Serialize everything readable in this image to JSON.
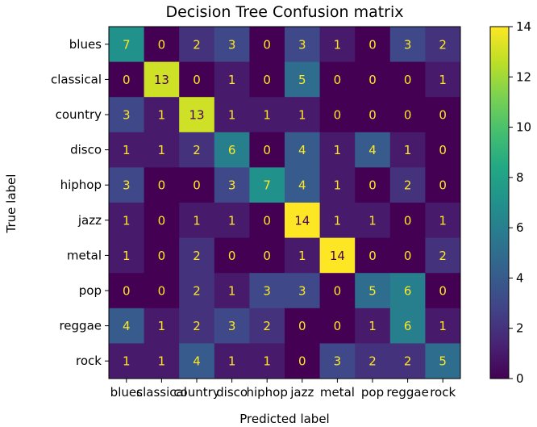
{
  "chart_data": {
    "type": "heatmap",
    "title": "Decision Tree Confusion matrix",
    "xlabel": "Predicted label",
    "ylabel": "True label",
    "x_categories": [
      "blues",
      "classical",
      "country",
      "disco",
      "hiphop",
      "jazz",
      "metal",
      "pop",
      "reggae",
      "rock"
    ],
    "y_categories": [
      "blues",
      "classical",
      "country",
      "disco",
      "hiphop",
      "jazz",
      "metal",
      "pop",
      "reggae",
      "rock"
    ],
    "values": [
      [
        7,
        0,
        2,
        3,
        0,
        3,
        1,
        0,
        3,
        2
      ],
      [
        0,
        13,
        0,
        1,
        0,
        5,
        0,
        0,
        0,
        1
      ],
      [
        3,
        1,
        13,
        1,
        1,
        1,
        0,
        0,
        0,
        0
      ],
      [
        1,
        1,
        2,
        6,
        0,
        4,
        1,
        4,
        1,
        0
      ],
      [
        3,
        0,
        0,
        3,
        7,
        4,
        1,
        0,
        2,
        0
      ],
      [
        1,
        0,
        1,
        1,
        0,
        14,
        1,
        1,
        0,
        1
      ],
      [
        1,
        0,
        2,
        0,
        0,
        1,
        14,
        0,
        0,
        2
      ],
      [
        0,
        0,
        2,
        1,
        3,
        3,
        0,
        5,
        6,
        0
      ],
      [
        4,
        1,
        2,
        3,
        2,
        0,
        0,
        1,
        6,
        1
      ],
      [
        1,
        1,
        4,
        1,
        1,
        0,
        3,
        2,
        2,
        5
      ]
    ],
    "colormap": "viridis",
    "colorbar": {
      "min": 0,
      "max": 14,
      "ticks": [
        0,
        2,
        4,
        6,
        8,
        10,
        12,
        14
      ]
    },
    "grid": false
  }
}
